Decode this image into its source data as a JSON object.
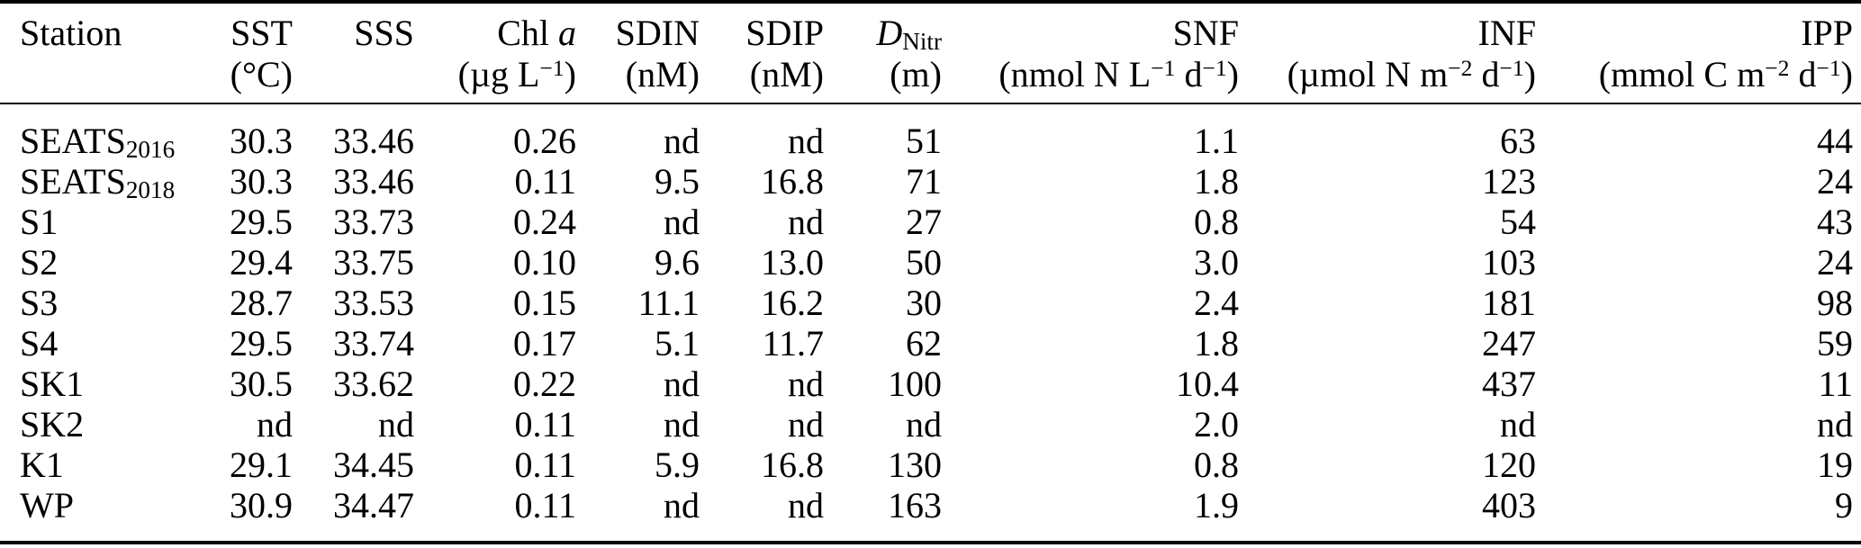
{
  "colors": {
    "background": "#ffffff",
    "text": "#000000",
    "rule": "#000000"
  },
  "table": {
    "columns": [
      {
        "key": "station",
        "label": "Station",
        "unit": "",
        "align": "left"
      },
      {
        "key": "sst",
        "label": "SST",
        "unit": "(°C)",
        "align": "right"
      },
      {
        "key": "sss",
        "label": "SSS",
        "unit": "",
        "align": "right"
      },
      {
        "key": "chla",
        "label": "Chl *a*",
        "unit": "(µg L^{−1})",
        "align": "right"
      },
      {
        "key": "sdin",
        "label": "SDIN",
        "unit": "(nM)",
        "align": "right"
      },
      {
        "key": "sdip",
        "label": "SDIP",
        "unit": "(nM)",
        "align": "right"
      },
      {
        "key": "dnitr",
        "label": "*D*_{Nitr}",
        "unit": "(m)",
        "align": "right"
      },
      {
        "key": "snf",
        "label": "SNF",
        "unit": "(nmol N L^{−1} d^{−1})",
        "align": "right"
      },
      {
        "key": "inf",
        "label": "INF",
        "unit": "(µmol N m^{−2} d^{−1})",
        "align": "right"
      },
      {
        "key": "ipp",
        "label": "IPP",
        "unit": "(mmol C m^{−2} d^{−1})",
        "align": "right"
      }
    ],
    "rows": [
      [
        "SEATS_{2016}",
        "30.3",
        "33.46",
        "0.26",
        "nd",
        "nd",
        "51",
        "1.1",
        "63",
        "44"
      ],
      [
        "SEATS_{2018}",
        "30.3",
        "33.46",
        "0.11",
        "9.5",
        "16.8",
        "71",
        "1.8",
        "123",
        "24"
      ],
      [
        "S1",
        "29.5",
        "33.73",
        "0.24",
        "nd",
        "nd",
        "27",
        "0.8",
        "54",
        "43"
      ],
      [
        "S2",
        "29.4",
        "33.75",
        "0.10",
        "9.6",
        "13.0",
        "50",
        "3.0",
        "103",
        "24"
      ],
      [
        "S3",
        "28.7",
        "33.53",
        "0.15",
        "11.1",
        "16.2",
        "30",
        "2.4",
        "181",
        "98"
      ],
      [
        "S4",
        "29.5",
        "33.74",
        "0.17",
        "5.1",
        "11.7",
        "62",
        "1.8",
        "247",
        "59"
      ],
      [
        "SK1",
        "30.5",
        "33.62",
        "0.22",
        "nd",
        "nd",
        "100",
        "10.4",
        "437",
        "11"
      ],
      [
        "SK2",
        "nd",
        "nd",
        "0.11",
        "nd",
        "nd",
        "nd",
        "2.0",
        "nd",
        "nd"
      ],
      [
        "K1",
        "29.1",
        "34.45",
        "0.11",
        "5.9",
        "16.8",
        "130",
        "0.8",
        "120",
        "19"
      ],
      [
        "WP",
        "30.9",
        "34.47",
        "0.11",
        "nd",
        "nd",
        "163",
        "1.9",
        "403",
        "9"
      ]
    ]
  }
}
